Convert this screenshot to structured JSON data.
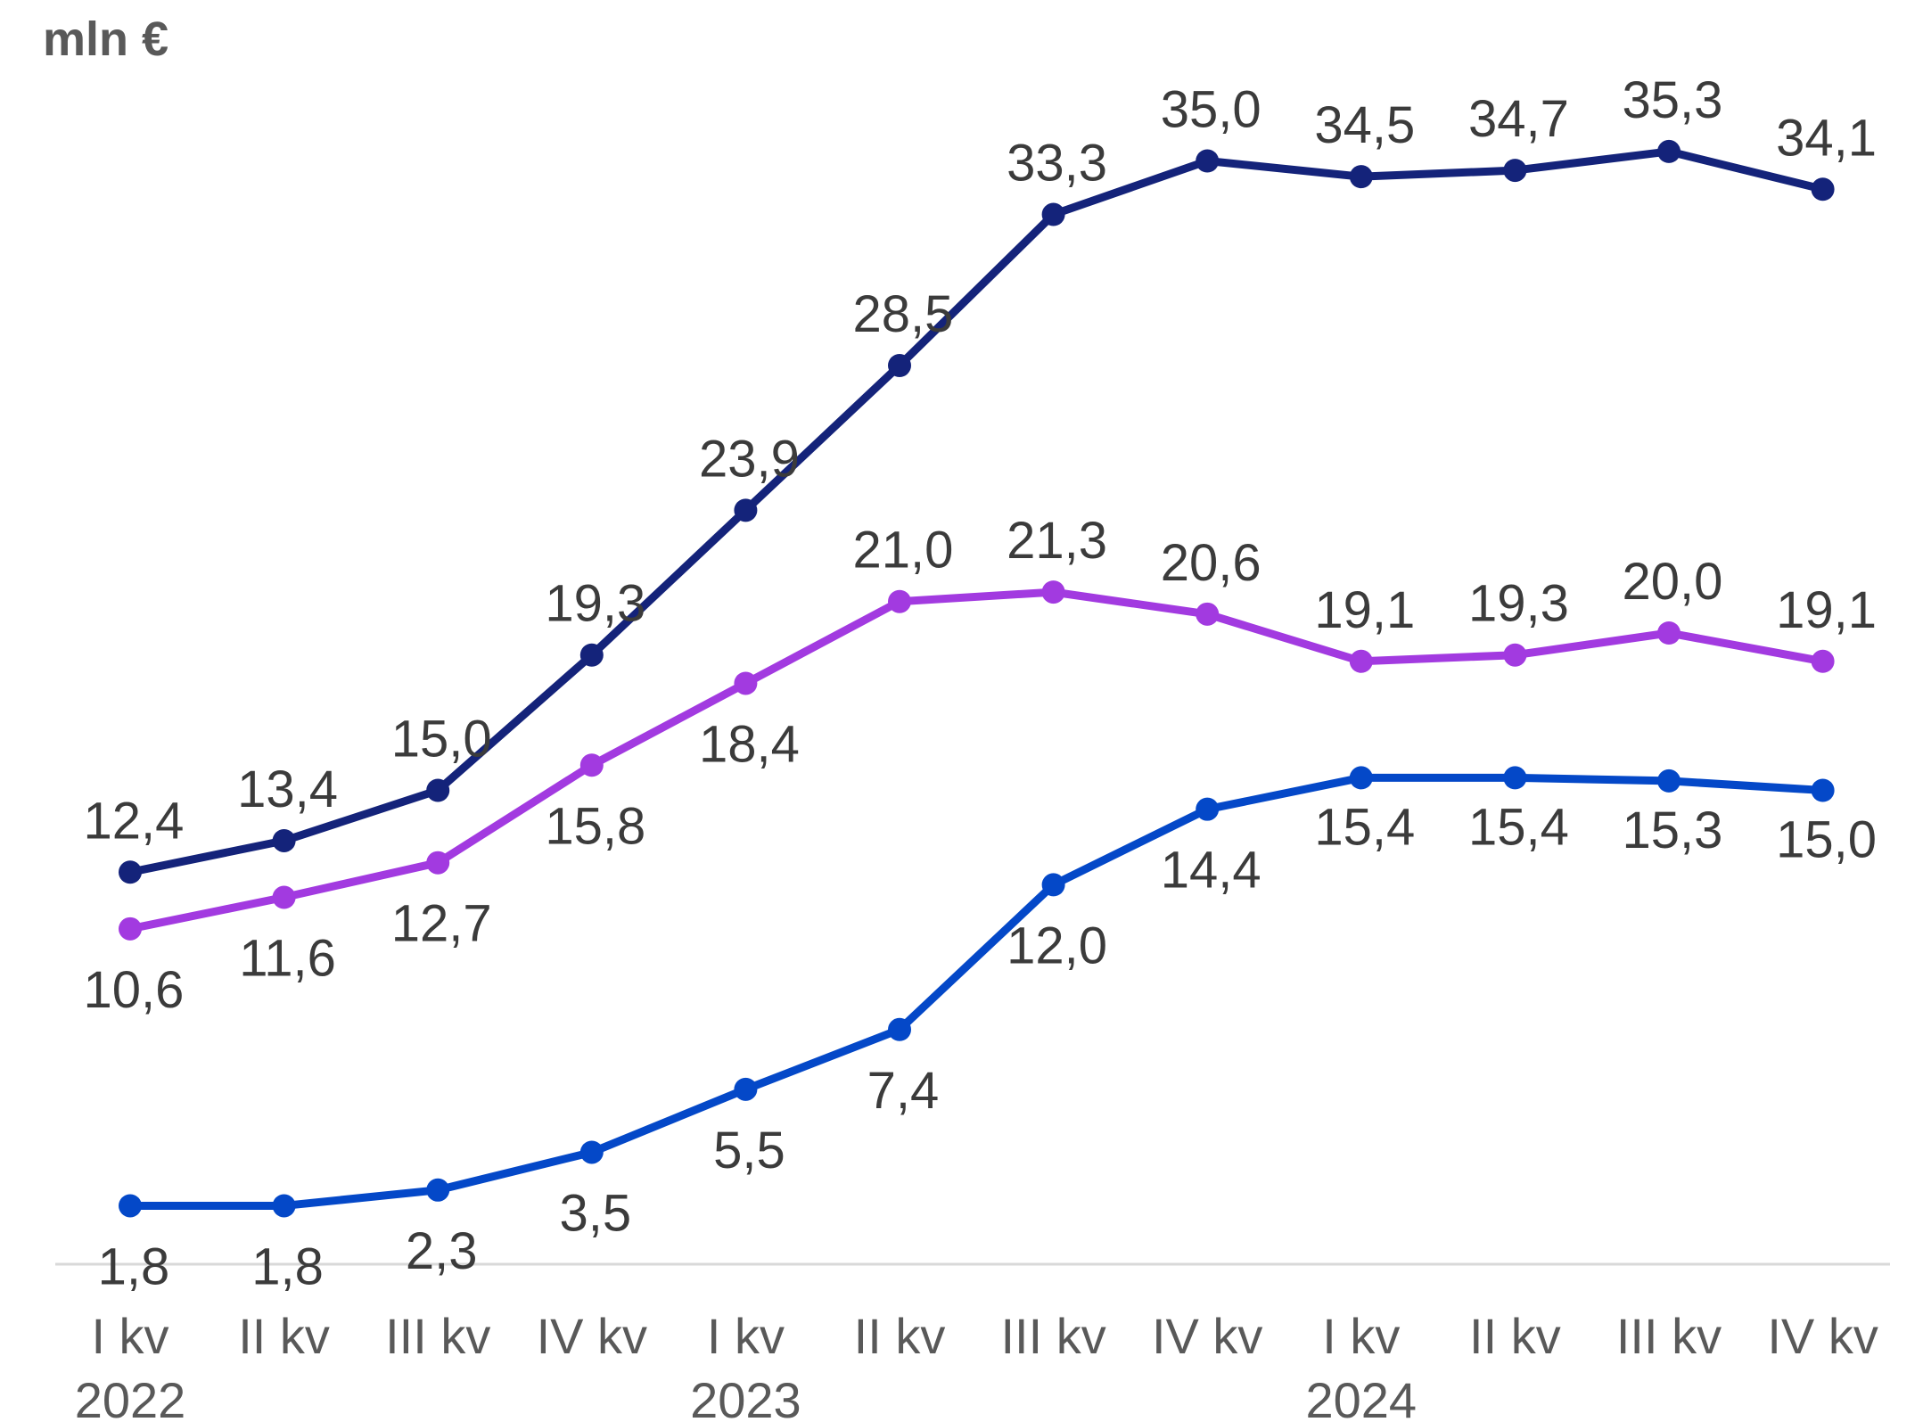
{
  "chart_data": {
    "type": "line",
    "unit_label": "mln €",
    "categories": [
      {
        "quarter": "I kv",
        "year": "2022"
      },
      {
        "quarter": "II kv",
        "year": ""
      },
      {
        "quarter": "III kv",
        "year": ""
      },
      {
        "quarter": "IV kv",
        "year": ""
      },
      {
        "quarter": "I kv",
        "year": "2023"
      },
      {
        "quarter": "II kv",
        "year": ""
      },
      {
        "quarter": "III kv",
        "year": ""
      },
      {
        "quarter": "IV kv",
        "year": ""
      },
      {
        "quarter": "I kv",
        "year": "2024"
      },
      {
        "quarter": "II kv",
        "year": ""
      },
      {
        "quarter": "III kv",
        "year": ""
      },
      {
        "quarter": "IV kv",
        "year": ""
      }
    ],
    "ylim": [
      0,
      40
    ],
    "grid": false,
    "legend": "none",
    "series": [
      {
        "color": "#14237a",
        "values": [
          12.4,
          13.4,
          15.0,
          19.3,
          23.9,
          28.5,
          33.3,
          35.0,
          34.5,
          34.7,
          35.3,
          34.1
        ],
        "labels": [
          "12,4",
          "13,4",
          "15,0",
          "19,3",
          "23,9",
          "28,5",
          "33,3",
          "35,0",
          "34,5",
          "34,7",
          "35,3",
          "34,1"
        ],
        "label_position": "above"
      },
      {
        "color": "#a23ae0",
        "values": [
          10.6,
          11.6,
          12.7,
          15.8,
          18.4,
          21.0,
          21.3,
          20.6,
          19.1,
          19.3,
          20.0,
          19.1
        ],
        "labels": [
          "10,6",
          "11,6",
          "12,7",
          "15,8",
          "18,4",
          "21,0",
          "21,3",
          "20,6",
          "19,1",
          "19,3",
          "20,0",
          "19,1"
        ],
        "label_position": "mixed"
      },
      {
        "color": "#0448c8",
        "values": [
          1.8,
          1.8,
          2.3,
          3.5,
          5.5,
          7.4,
          12.0,
          14.4,
          15.4,
          15.4,
          15.3,
          15.0
        ],
        "labels": [
          "1,8",
          "1,8",
          "2,3",
          "3,5",
          "5,5",
          "7,4",
          "12,0",
          "14,4",
          "15,4",
          "15,4",
          "15,3",
          "15,0"
        ],
        "label_position": "below"
      }
    ]
  }
}
